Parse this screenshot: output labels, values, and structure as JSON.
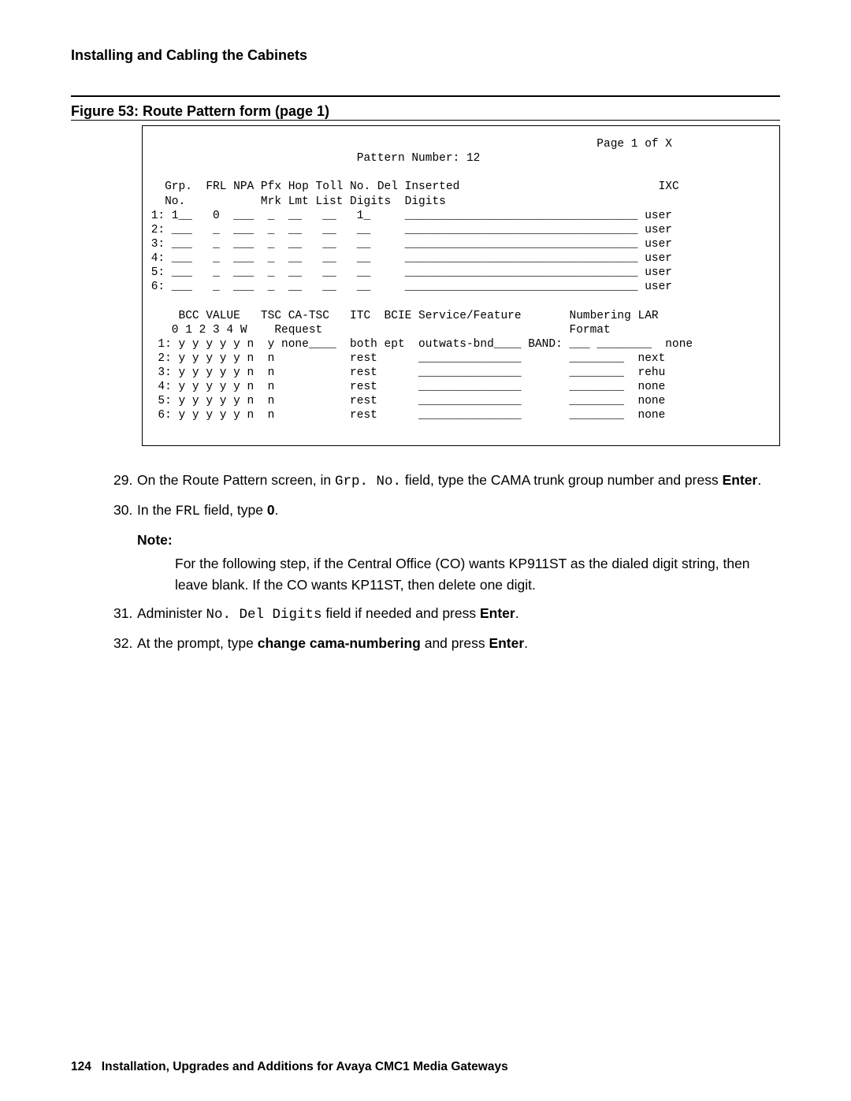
{
  "header": {
    "title": "Installing and Cabling the Cabinets"
  },
  "figure": {
    "caption": "Figure 53: Route Pattern form (page 1)"
  },
  "terminal": {
    "line01": "                                                                  Page 1 of X",
    "line02": "                               Pattern Number: 12",
    "line03": "",
    "line04": "   Grp.  FRL NPA Pfx Hop Toll No. Del Inserted                             IXC",
    "line05": "   No.           Mrk Lmt List Digits  Digits",
    "line06": " 1: 1__   0  ___  _  __   __   1_     __________________________________ user",
    "line07": " 2: ___   _  ___  _  __   __   __     __________________________________ user",
    "line08": " 3: ___   _  ___  _  __   __   __     __________________________________ user",
    "line09": " 4: ___   _  ___  _  __   __   __     __________________________________ user",
    "line10": " 5: ___   _  ___  _  __   __   __     __________________________________ user",
    "line11": " 6: ___   _  ___  _  __   __   __     __________________________________ user",
    "line12": "",
    "line13": "     BCC VALUE   TSC CA-TSC   ITC  BCIE Service/Feature       Numbering LAR",
    "line14": "    0 1 2 3 4 W    Request                                    Format",
    "line15": "  1: y y y y y n  y none____  both ept  outwats-bnd____ BAND: ___ ________  none",
    "line16": "  2: y y y y y n  n           rest      _______________       ________  next",
    "line17": "  3: y y y y y n  n           rest      _______________       ________  rehu",
    "line18": "  4: y y y y y n  n           rest      _______________       ________  none",
    "line19": "  5: y y y y y n  n           rest      _______________       ________  none",
    "line20": "  6: y y y y y n  n           rest      _______________       ________  none"
  },
  "steps": {
    "s29_num": "29.",
    "s29_a": "On the Route Pattern screen, in ",
    "s29_code1": "Grp. No.",
    "s29_b": " field, type the CAMA trunk group number and press ",
    "s29_bold": "Enter",
    "s29_c": ".",
    "s30_num": "30.",
    "s30_a": "In the ",
    "s30_code1": "FRL",
    "s30_b": " field, type ",
    "s30_bold": "0",
    "s30_c": ".",
    "note_label": "Note:",
    "note_body": "For the following step, if the Central Office (CO) wants KP911ST as the dialed digit string, then leave blank. If the CO wants KP11ST, then delete one digit.",
    "s31_num": "31.",
    "s31_a": "Administer ",
    "s31_code1": "No. Del Digits",
    "s31_b": " field if needed and press ",
    "s31_bold": "Enter",
    "s31_c": ".",
    "s32_num": "32.",
    "s32_a": "At the prompt, type ",
    "s32_bold1": "change cama-numbering",
    "s32_b": " and press ",
    "s32_bold2": "Enter",
    "s32_c": "."
  },
  "footer": {
    "page": "124",
    "title": "Installation, Upgrades and Additions for Avaya CMC1 Media Gateways"
  }
}
